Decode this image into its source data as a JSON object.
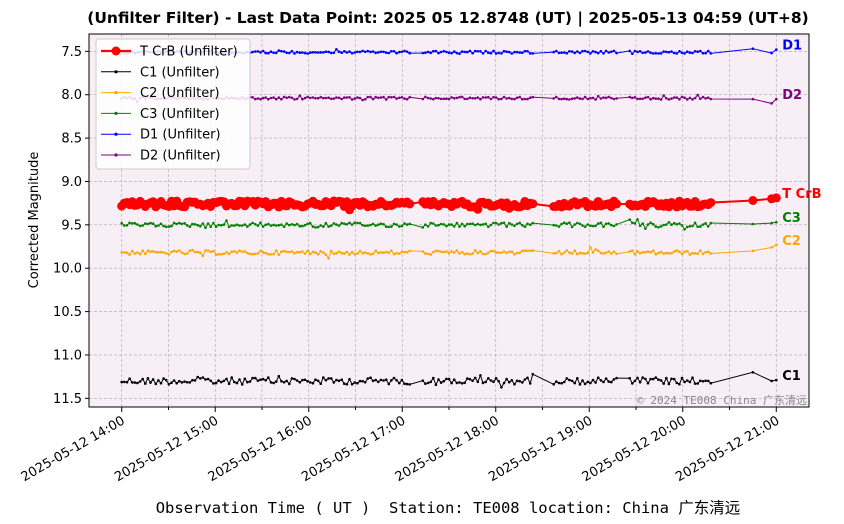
{
  "chart_data": {
    "type": "line",
    "title": "(Unfilter Filter) - Last Data Point: 2025 05 12.8748 (UT) | 2025-05-13 04:59 (UT+8)",
    "xlabel": "Observation Time ( UT )  Station: TE008 location: China 广东清远",
    "ylabel": "Corrected Magnitude",
    "watermark": "© 2024 TE008 China 广东清远",
    "x_ticks": [
      {
        "hour": 14,
        "label": "2025-05-12 14:00"
      },
      {
        "hour": 15,
        "label": "2025-05-12 15:00"
      },
      {
        "hour": 16,
        "label": "2025-05-12 16:00"
      },
      {
        "hour": 17,
        "label": "2025-05-12 17:00"
      },
      {
        "hour": 18,
        "label": "2025-05-12 18:00"
      },
      {
        "hour": 19,
        "label": "2025-05-12 19:00"
      },
      {
        "hour": 20,
        "label": "2025-05-12 20:00"
      },
      {
        "hour": 21,
        "label": "2025-05-12 21:00"
      }
    ],
    "y_ticks": [
      "7.5",
      "8.0",
      "8.5",
      "9.0",
      "9.5",
      "10.0",
      "10.5",
      "11.0",
      "11.5"
    ],
    "xlim_hours": [
      13.65,
      21.35
    ],
    "ylim": [
      11.6,
      7.3
    ],
    "y_inverted": true,
    "grid": true,
    "legend_position": "top-left",
    "background_color": "#f7eef6",
    "gaps": [
      [
        17.08,
        17.2
      ],
      [
        18.42,
        18.6
      ],
      [
        19.3,
        19.42
      ],
      [
        20.3,
        20.75
      ]
    ],
    "series": [
      {
        "name": "T CrB (Unfilter)",
        "end_label": "T CrB",
        "color": "#ff0000",
        "base": 9.26,
        "jitter": 0.035,
        "style": "thick",
        "end": [
          9.22,
          9.2,
          9.19
        ]
      },
      {
        "name": "C1 (Unfilter)",
        "end_label": "C1",
        "color": "#000000",
        "base": 11.3,
        "jitter": 0.04,
        "style": "small",
        "end": [
          11.2,
          11.3,
          11.29
        ]
      },
      {
        "name": "C2 (Unfilter)",
        "end_label": "C2",
        "color": "#ffa500",
        "base": 9.82,
        "jitter": 0.025,
        "style": "small",
        "end": [
          9.8,
          9.76,
          9.73
        ]
      },
      {
        "name": "C3 (Unfilter)",
        "end_label": "C3",
        "color": "#008000",
        "base": 9.5,
        "jitter": 0.025,
        "style": "small",
        "end": [
          9.49,
          9.48,
          9.47
        ]
      },
      {
        "name": "D1 (Unfilter)",
        "end_label": "D1",
        "color": "#0000ff",
        "base": 7.51,
        "jitter": 0.015,
        "style": "small",
        "end": [
          7.47,
          7.52,
          7.48
        ]
      },
      {
        "name": "D2 (Unfilter)",
        "end_label": "D2",
        "color": "#800080",
        "base": 8.04,
        "jitter": 0.015,
        "style": "small",
        "end": [
          8.05,
          8.1,
          8.05
        ]
      }
    ]
  }
}
